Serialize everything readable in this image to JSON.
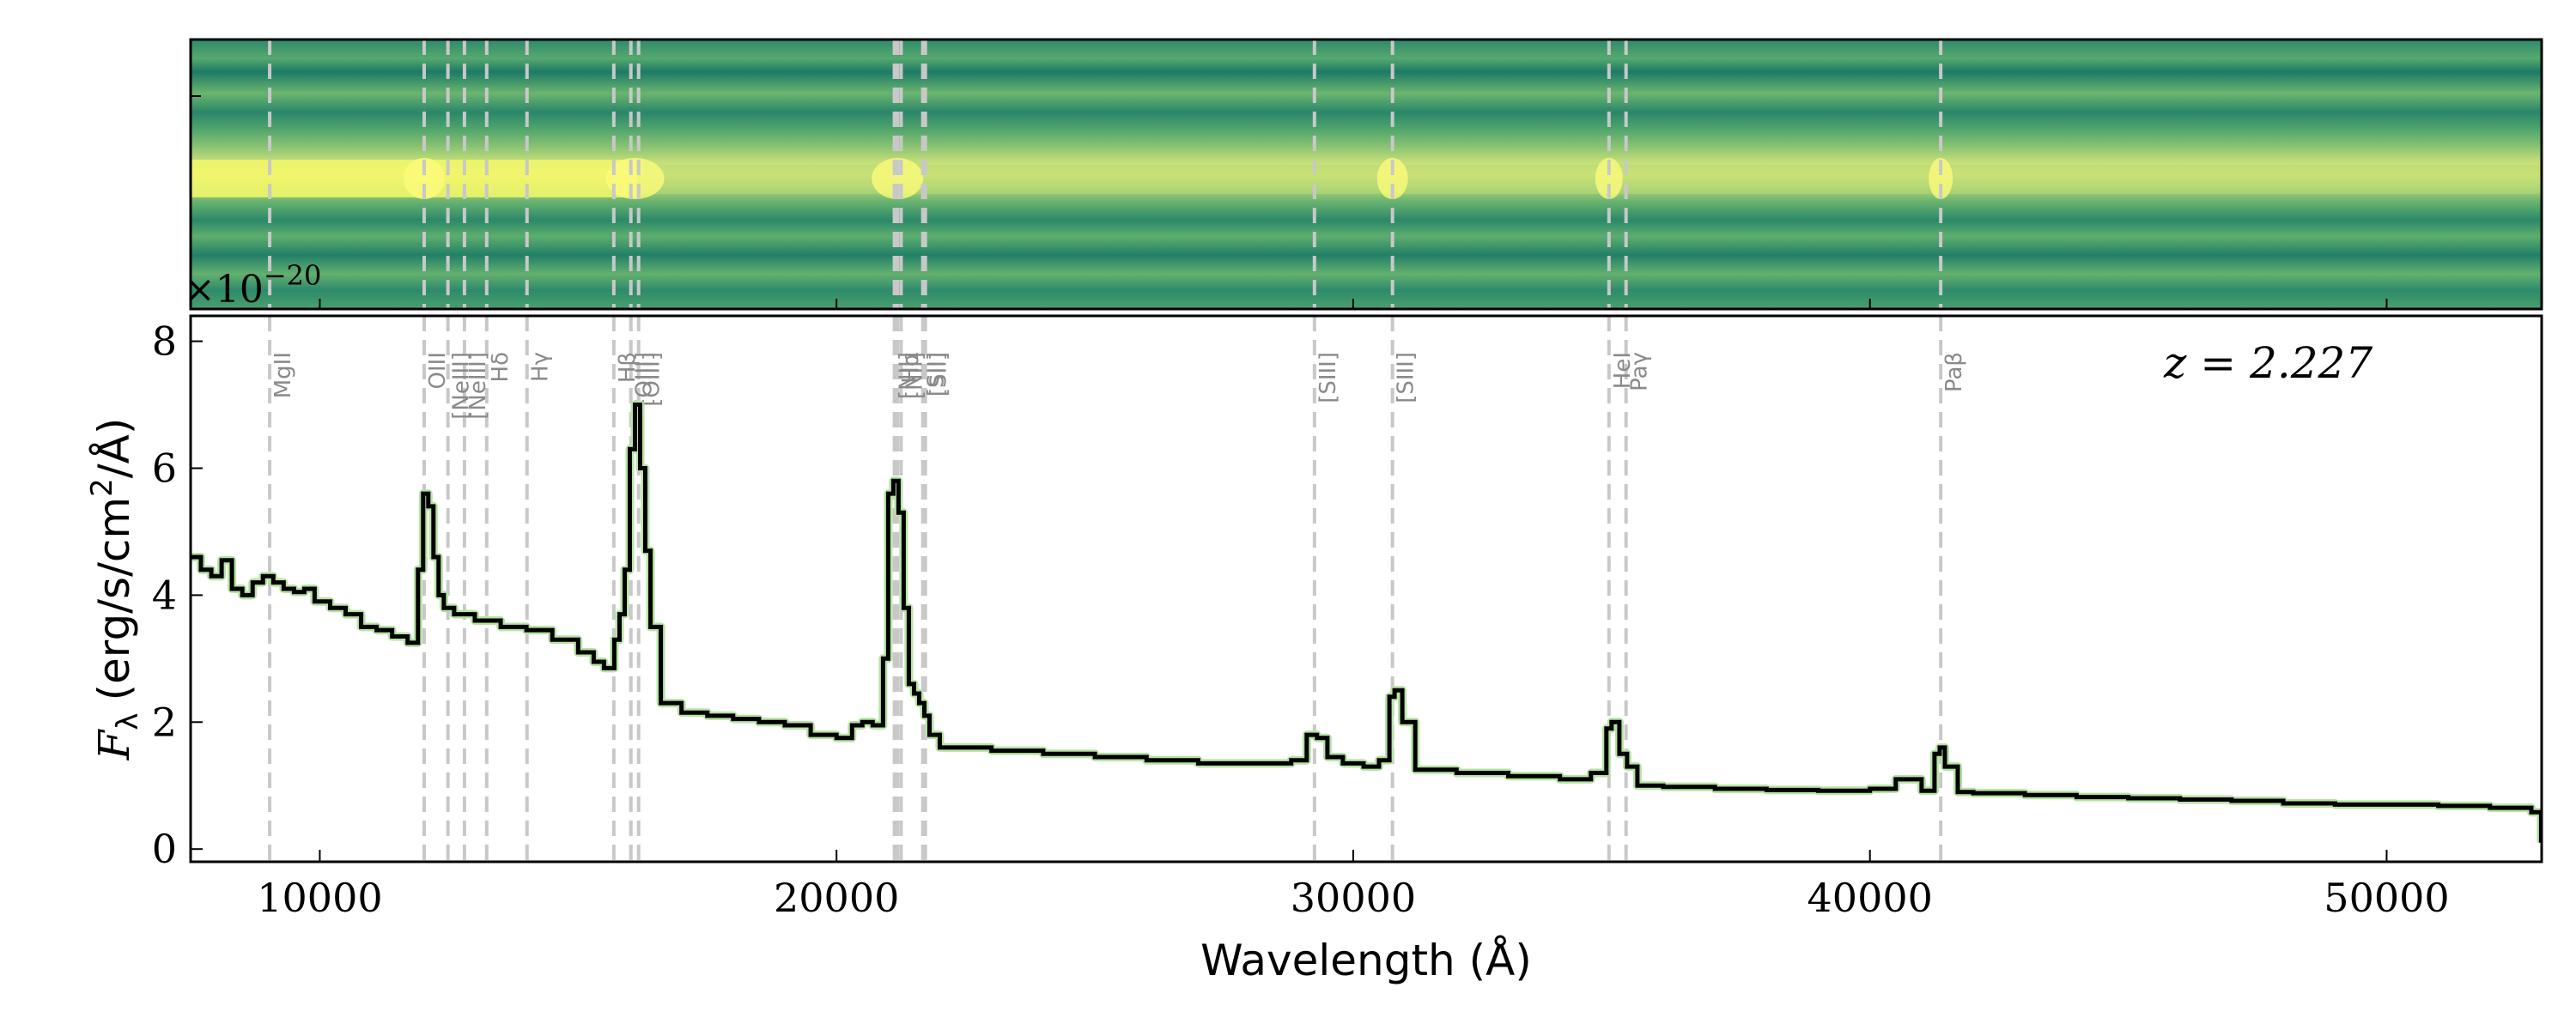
{
  "chart_data": {
    "type": "line",
    "multiplier": "×10",
    "multiplier_exp": "−20",
    "xlabel": "Wavelength (Å)",
    "ylabel_symbol": "F",
    "ylabel_sub": "λ",
    "ylabel_units": "(erg/s/cm",
    "ylabel_units_sup": "2",
    "ylabel_units_end": "/Å)",
    "redshift": "z = 2.227",
    "xlim": [
      7500,
      53000
    ],
    "ylim": [
      -0.2,
      8.4
    ],
    "xticks": [
      10000,
      20000,
      30000,
      40000,
      50000
    ],
    "xtick_labels": [
      "10000",
      "20000",
      "30000",
      "40000",
      "50000"
    ],
    "yticks": [
      0,
      2,
      4,
      6,
      8
    ],
    "ytick_labels": [
      "0",
      "2",
      "4",
      "6",
      "8"
    ],
    "grid": false,
    "colors": {
      "spectrum": "#000000",
      "line_marker": "#c8c8c8",
      "label": "#8a8a8a",
      "uncertainty": "#b6e3a5",
      "panel_low": "#1e7e68",
      "panel_mid": "#5fb06d",
      "panel_high": "#f3f76a"
    },
    "emission_lines": [
      {
        "label": "MgII",
        "x": 9030
      },
      {
        "label": "OIII",
        "x": 12020
      },
      {
        "label": "[NeIII]",
        "x": 12480
      },
      {
        "label": "[NeIII]",
        "x": 12800
      },
      {
        "label": "Hδ",
        "x": 13230
      },
      {
        "label": "Hγ",
        "x": 14010
      },
      {
        "label": "Hβ",
        "x": 15690
      },
      {
        "label": "[OIII]",
        "x": 16020
      },
      {
        "label": "[OIII]",
        "x": 16170
      },
      {
        "label": "[NII]",
        "x": 21120
      },
      {
        "label": "Hα",
        "x": 21180
      },
      {
        "label": "[NII]",
        "x": 21250
      },
      {
        "label": "[SII]",
        "x": 21670
      },
      {
        "label": "[SII]",
        "x": 21720
      },
      {
        "label": "[SIII]",
        "x": 29250
      },
      {
        "label": "[SIII]",
        "x": 30760
      },
      {
        "label": "HeI",
        "x": 34950
      },
      {
        "label": "Paγ",
        "x": 35280
      },
      {
        "label": "Paβ",
        "x": 41370
      }
    ],
    "series": [
      {
        "x": [
          7500,
          7700,
          7900,
          8100,
          8300,
          8500,
          8700,
          8900,
          9100,
          9300,
          9500,
          9700,
          9900,
          10200,
          10500,
          10800,
          11100,
          11400,
          11700,
          11900,
          12000,
          12100,
          12200,
          12300,
          12400,
          12600,
          13000,
          13500,
          14000,
          14500,
          15000,
          15300,
          15500,
          15700,
          15800,
          15900,
          16000,
          16100,
          16200,
          16300,
          16400,
          16600,
          17000,
          17500,
          18000,
          18500,
          19000,
          19500,
          20000,
          20300,
          20500,
          20700,
          20900,
          21000,
          21100,
          21200,
          21300,
          21400,
          21500,
          21600,
          21700,
          21800,
          22000,
          22500,
          23000,
          24000,
          25000,
          26000,
          27000,
          28000,
          28800,
          29100,
          29300,
          29500,
          29800,
          30200,
          30500,
          30700,
          30800,
          30950,
          31200,
          32000,
          33000,
          34000,
          34600,
          34900,
          35000,
          35150,
          35300,
          35500,
          36000,
          37000,
          38000,
          39000,
          40000,
          40500,
          41000,
          41250,
          41350,
          41450,
          41700,
          42000,
          43000,
          44000,
          45000,
          46000,
          47000,
          48000,
          49000,
          50000,
          51000,
          52000,
          52800,
          52990
        ],
        "values": [
          4.6,
          4.4,
          4.3,
          4.55,
          4.1,
          4.0,
          4.2,
          4.3,
          4.2,
          4.1,
          4.05,
          4.1,
          3.9,
          3.8,
          3.7,
          3.5,
          3.45,
          3.35,
          3.25,
          4.4,
          5.6,
          5.4,
          4.6,
          4.0,
          3.8,
          3.7,
          3.6,
          3.5,
          3.45,
          3.3,
          3.1,
          2.95,
          2.85,
          3.3,
          3.7,
          4.4,
          6.3,
          7.0,
          6.0,
          4.7,
          3.5,
          2.3,
          2.15,
          2.1,
          2.05,
          2.0,
          1.95,
          1.8,
          1.75,
          1.95,
          2.0,
          1.95,
          3.0,
          5.6,
          5.8,
          5.3,
          3.8,
          2.6,
          2.45,
          2.3,
          2.1,
          1.8,
          1.6,
          1.6,
          1.55,
          1.5,
          1.45,
          1.4,
          1.35,
          1.35,
          1.4,
          1.8,
          1.75,
          1.45,
          1.35,
          1.3,
          1.4,
          2.4,
          2.5,
          2.0,
          1.25,
          1.2,
          1.15,
          1.1,
          1.2,
          1.9,
          2.0,
          1.5,
          1.3,
          1.0,
          0.98,
          0.95,
          0.93,
          0.92,
          0.95,
          1.1,
          0.92,
          1.5,
          1.6,
          1.3,
          0.9,
          0.88,
          0.85,
          0.82,
          0.8,
          0.78,
          0.76,
          0.72,
          0.7,
          0.7,
          0.68,
          0.65,
          0.58,
          0.1
        ]
      }
    ]
  }
}
